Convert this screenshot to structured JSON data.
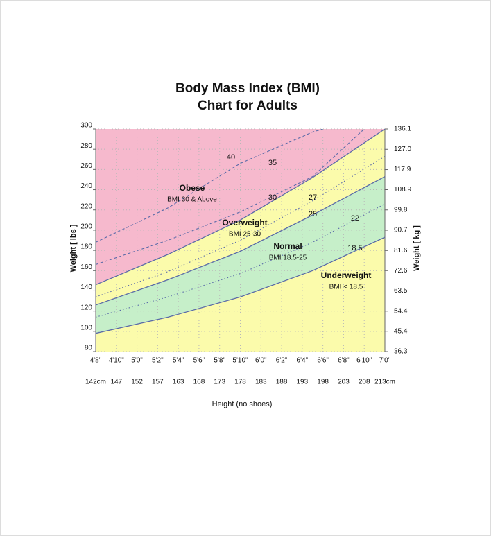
{
  "chart_data": {
    "type": "bmi",
    "title": "Body Mass Index (BMI)",
    "subtitle": "Chart for Adults",
    "xlabel": "Height (no shoes)",
    "ylabel": "Weight [ lbs ]",
    "y2label": "Weight [ kg ]",
    "xlim": [
      56,
      84
    ],
    "xticks": [
      {
        "value": 56,
        "label": "4'8\""
      },
      {
        "value": 58,
        "label": "4'10\""
      },
      {
        "value": 60,
        "label": "5'0\""
      },
      {
        "value": 62,
        "label": "5'2\""
      },
      {
        "value": 64,
        "label": "5'4\""
      },
      {
        "value": 66,
        "label": "5'6\""
      },
      {
        "value": 68,
        "label": "5'8\""
      },
      {
        "value": 70,
        "label": "5'10\""
      },
      {
        "value": 72,
        "label": "6'0\""
      },
      {
        "value": 74,
        "label": "6'2\""
      },
      {
        "value": 76,
        "label": "6'4\""
      },
      {
        "value": 78,
        "label": "6'6\""
      },
      {
        "value": 80,
        "label": "6'8\""
      },
      {
        "value": 82,
        "label": "6'10\""
      },
      {
        "value": 84,
        "label": "7'0\""
      }
    ],
    "x2ticks": [
      {
        "value": 56,
        "label": "142cm"
      },
      {
        "value": 58,
        "label": "147"
      },
      {
        "value": 60,
        "label": "152"
      },
      {
        "value": 62,
        "label": "157"
      },
      {
        "value": 64,
        "label": "163"
      },
      {
        "value": 66,
        "label": "168"
      },
      {
        "value": 68,
        "label": "173"
      },
      {
        "value": 70,
        "label": "178"
      },
      {
        "value": 72,
        "label": "183"
      },
      {
        "value": 74,
        "label": "188"
      },
      {
        "value": 76,
        "label": "193"
      },
      {
        "value": 78,
        "label": "198"
      },
      {
        "value": 80,
        "label": "203"
      },
      {
        "value": 82,
        "label": "208"
      },
      {
        "value": 84,
        "label": "213cm"
      }
    ],
    "ylim": [
      80,
      300
    ],
    "yticks": [
      80,
      100,
      120,
      140,
      160,
      180,
      200,
      220,
      240,
      260,
      280,
      300
    ],
    "y2lim": [
      36.3,
      136.1
    ],
    "y2ticks": [
      36.3,
      45.4,
      54.4,
      63.5,
      72.6,
      81.6,
      90.7,
      99.8,
      108.9,
      117.9,
      {
        "value": 127,
        "label": "127.0"
      },
      136.1
    ],
    "grid": true,
    "zones": [
      {
        "name": "Obese",
        "label": "BMI 30 & Above",
        "color": "#f6b9cd"
      },
      {
        "name": "Overweight",
        "label": "BMI 25-30",
        "color": "#fbfbab"
      },
      {
        "name": "Normal",
        "label": "BMI 18.5-25",
        "color": "#c6efc9"
      },
      {
        "name": "Underweight",
        "label": "BMI < 18.5",
        "color": "#fbfbab"
      }
    ],
    "series": [
      {
        "name": "40",
        "style": "dashed",
        "color": "#5a6aa8",
        "x": [
          56,
          63,
          70,
          77,
          78
        ],
        "values": [
          188,
          222,
          266,
          297,
          300
        ]
      },
      {
        "name": "35",
        "style": "dashed",
        "color": "#5a6aa8",
        "x": [
          56,
          63,
          70,
          77,
          82
        ],
        "values": [
          166,
          190,
          218,
          253,
          300
        ]
      },
      {
        "name": "30",
        "style": "solid",
        "color": "#5a6aa8",
        "x": [
          56,
          63,
          70,
          77,
          84
        ],
        "values": [
          146,
          176,
          210,
          252,
          300
        ]
      },
      {
        "name": "27",
        "style": "dotted",
        "color": "#5a6aa8",
        "x": [
          56,
          63,
          70,
          77,
          84
        ],
        "values": [
          134,
          159,
          190,
          229,
          273
        ]
      },
      {
        "name": "25",
        "style": "solid",
        "color": "#5a6aa8",
        "x": [
          56,
          63,
          70,
          77,
          84
        ],
        "values": [
          126,
          151,
          179,
          215,
          253
        ]
      },
      {
        "name": "22",
        "style": "dotted",
        "color": "#5a6aa8",
        "x": [
          56,
          63,
          70,
          77,
          84
        ],
        "values": [
          114,
          134,
          157,
          188,
          226
        ]
      },
      {
        "name": "18.5",
        "style": "solid",
        "color": "#5a6aa8",
        "x": [
          56,
          63,
          70,
          77,
          84
        ],
        "values": [
          98,
          114,
          134,
          160,
          193
        ]
      }
    ]
  }
}
